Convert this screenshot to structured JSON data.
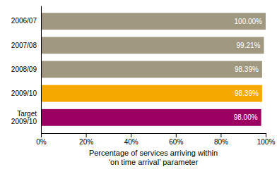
{
  "chart_data": {
    "type": "bar",
    "orientation": "horizontal",
    "categories": [
      "2006/07",
      "2007/08",
      "2008/09",
      "2009/10",
      "Target\n2009/10"
    ],
    "values": [
      100.0,
      99.21,
      98.39,
      98.39,
      98.0
    ],
    "value_labels": [
      "100.00%",
      "99.21%",
      "98.39%",
      "98.39%",
      "98.00%"
    ],
    "data_labels": true,
    "colors": [
      "#a09880",
      "#a09880",
      "#a09880",
      "#f5a800",
      "#9b0060"
    ],
    "xlabel": "Percentage of services arriving within\n‘on time arrival’ parameter",
    "xlim": [
      0,
      100
    ],
    "xticks": [
      {
        "value": 0,
        "label": "0%"
      },
      {
        "value": 20,
        "label": "20%"
      },
      {
        "value": 40,
        "label": "40%"
      },
      {
        "value": 60,
        "label": "60%"
      },
      {
        "value": 80,
        "label": "80%"
      },
      {
        "value": 100,
        "label": "100%"
      }
    ],
    "grid": false
  }
}
